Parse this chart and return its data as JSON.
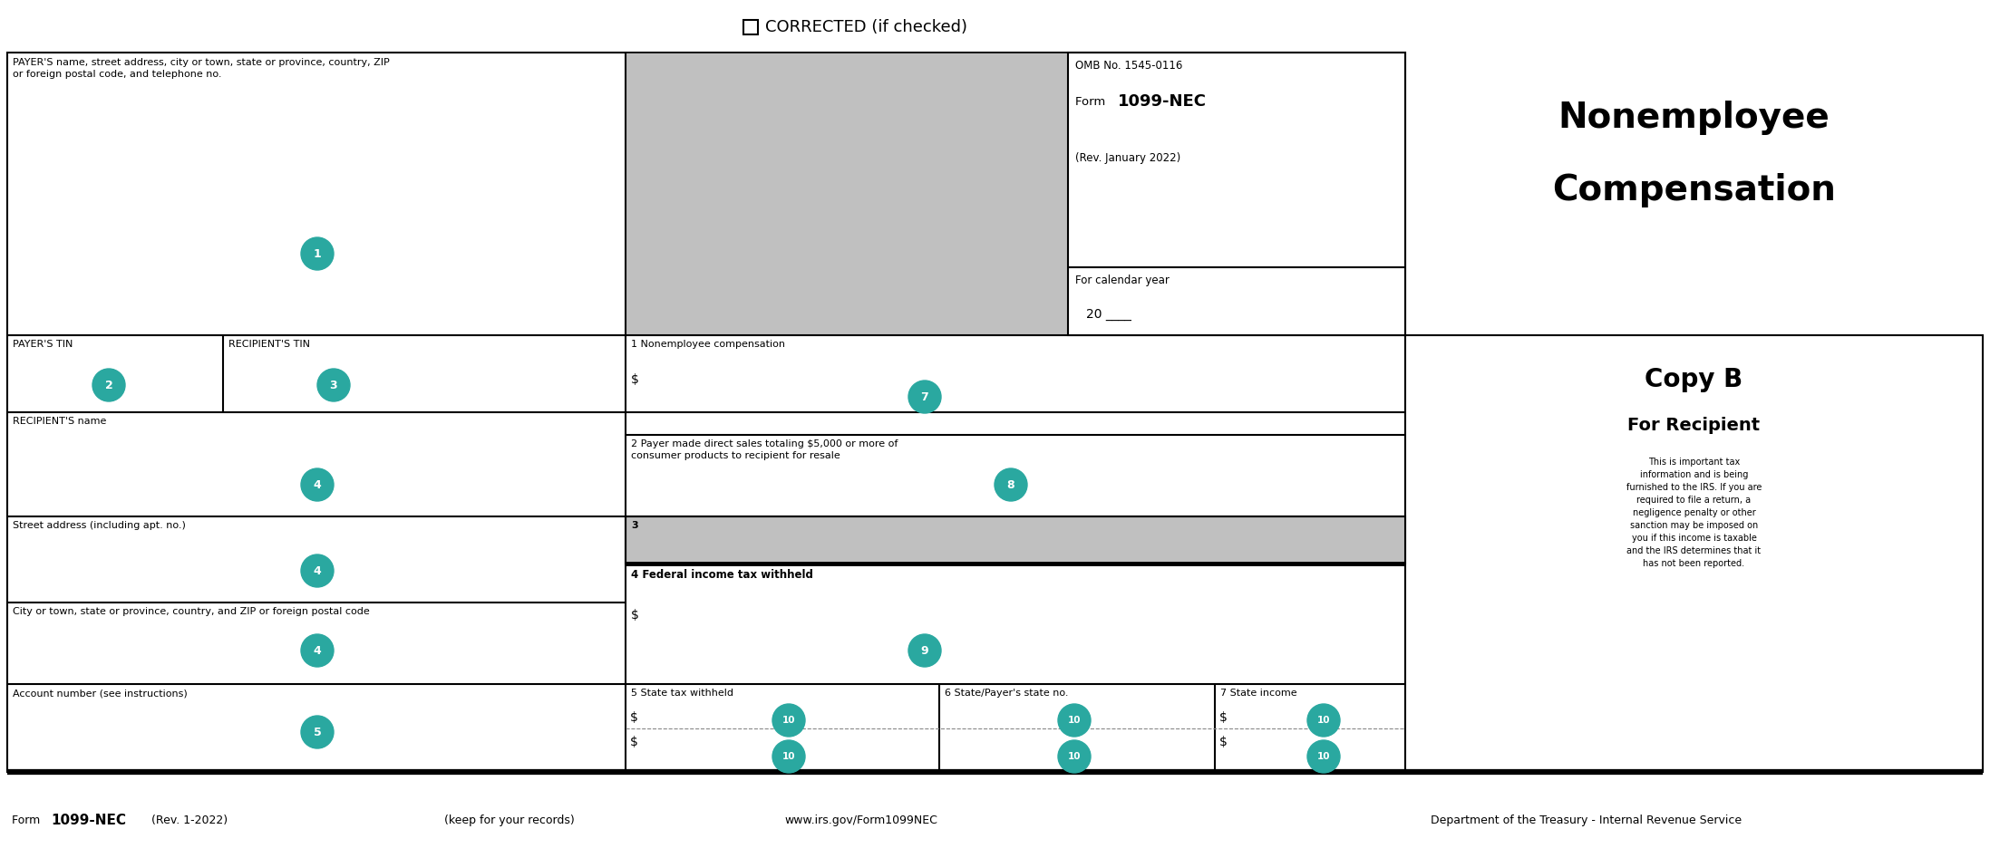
{
  "fig_width": 21.95,
  "fig_height": 9.47,
  "bg_color": "#ffffff",
  "border_color": "#000000",
  "teal_color": "#2aa8a0",
  "gray_color": "#c0c0c0",
  "corrected_text": "CORRECTED (if checked)",
  "omb_text": "OMB No. 1545-0116",
  "rev_text": "(Rev. January 2022)",
  "cal_year_text": "For calendar year",
  "cal_year_num": "20 ____",
  "nec_title_line1": "Nonemployee",
  "nec_title_line2": "Compensation",
  "copy_b": "Copy B",
  "for_recipient": "For Recipient",
  "copy_b_text_lines": [
    "This is important tax",
    "information and is being",
    "furnished to the IRS. If you are",
    "required to file a return, a",
    "negligence penalty or other",
    "sanction may be imposed on",
    "you if this income is taxable",
    "and the IRS determines that it",
    "has not been reported."
  ],
  "payer_name_label": "PAYER'S name, street address, city or town, state or province, country, ZIP\nor foreign postal code, and telephone no.",
  "payer_tin_label": "PAYER'S TIN",
  "recipient_tin_label": "RECIPIENT'S TIN",
  "recipient_name_label": "RECIPIENT'S name",
  "street_label": "Street address (including apt. no.)",
  "city_label": "City or town, state or province, country, and ZIP or foreign postal code",
  "account_label": "Account number (see instructions)",
  "box1_label": "1 Nonemployee compensation",
  "box2_label": "2 Payer made direct sales totaling $5,000 or more of\nconsumer products to recipient for resale",
  "box3_label": "3",
  "box4_label": "4 Federal income tax withheld",
  "box5_label": "5 State tax withheld",
  "box6_label": "6 State/Payer's state no.",
  "box7_label": "7 State income",
  "footer1a": "Form ",
  "footer1b": "1099-NEC",
  "footer1c": " (Rev. 1-2022)",
  "footer2": "(keep for your records)",
  "footer3": "www.irs.gov/Form1099NEC",
  "footer4": "Department of the Treasury - Internal Revenue Service",
  "form_bold": "1099-NEC"
}
